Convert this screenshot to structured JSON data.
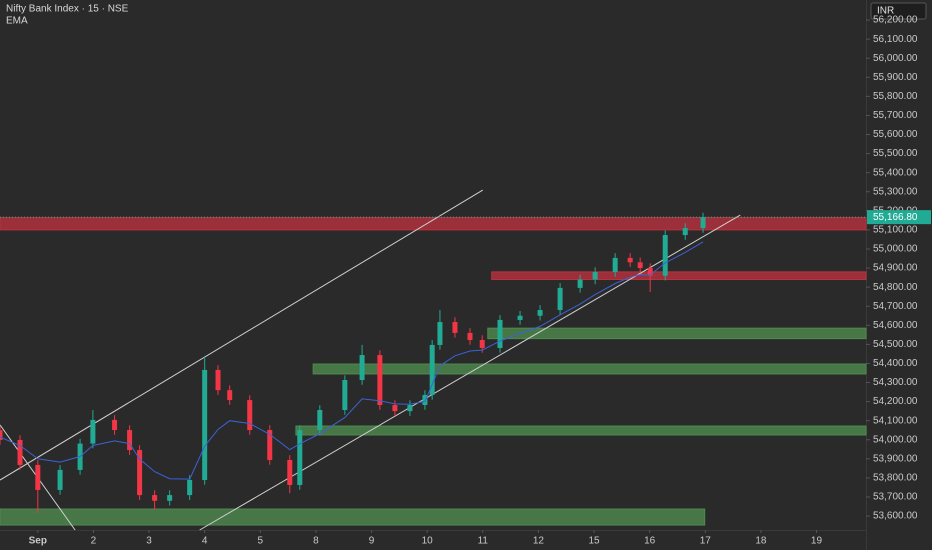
{
  "chart_data": {
    "type": "candlestick",
    "title": "Nifty Bank Index · 15 · NSE",
    "currency": "INR",
    "up_color": "#22ab94",
    "down_color": "#f23645",
    "grid": false,
    "x": [
      -0.68,
      -0.32,
      0,
      0.4,
      0.76,
      0.99,
      1.38,
      1.65,
      1.83,
      2.1,
      2.37,
      2.73,
      3,
      3.24,
      3.45,
      3.81,
      4.17,
      4.53,
      4.71,
      5.07,
      5.52,
      5.83,
      6.15,
      6.42,
      6.69,
      6.96,
      7.09,
      7.23,
      7.5,
      7.77,
      7.99,
      8.31,
      8.67,
      9.03,
      9.39,
      9.75,
      10.02,
      10.38,
      10.65,
      10.83,
      11.01,
      11.28,
      11.64,
      11.96
    ],
    "open": [
      54050,
      53999,
      53868,
      53737,
      53842,
      53980,
      54104,
      54051,
      53946,
      53710,
      53680,
      53710,
      53789,
      54366,
      54260,
      54208,
      54051,
      53894,
      53763,
      54051,
      54156,
      54313,
      54444,
      54182,
      54150,
      54182,
      54235,
      54497,
      54617,
      54560,
      54523,
      54481,
      54628,
      54650,
      54680,
      54796,
      54840,
      54879,
      54953,
      54930,
      54900,
      54860,
      55073,
      55110
    ],
    "high": [
      54075,
      54024,
      53893,
      53867,
      54005,
      54156,
      54129,
      54076,
      53971,
      53735,
      53735,
      53814,
      54434,
      54391,
      54285,
      54233,
      54076,
      53919,
      54076,
      54181,
      54338,
      54497,
      54469,
      54207,
      54207,
      54260,
      54522,
      54680,
      54642,
      54585,
      54548,
      54653,
      54675,
      54705,
      54821,
      54865,
      54904,
      54978,
      54978,
      54955,
      54925,
      55098,
      55135,
      55190
    ],
    "low": [
      53974,
      53843,
      53616,
      53712,
      53817,
      53955,
      54026,
      53921,
      53685,
      53632,
      53655,
      53685,
      53764,
      54235,
      54183,
      54026,
      53869,
      53720,
      53738,
      54026,
      54131,
      54288,
      54157,
      54125,
      54125,
      54157,
      54210,
      54472,
      54535,
      54498,
      54456,
      54456,
      54603,
      54625,
      54655,
      54771,
      54815,
      54854,
      54905,
      54875,
      54774,
      54835,
      55048,
      55085
    ],
    "close": [
      53999,
      53868,
      53737,
      53842,
      53980,
      54104,
      54051,
      53946,
      53710,
      53680,
      53710,
      53789,
      54366,
      54260,
      54208,
      54051,
      53894,
      53763,
      54051,
      54156,
      54313,
      54444,
      54182,
      54150,
      54182,
      54235,
      54497,
      54617,
      54560,
      54523,
      54481,
      54628,
      54650,
      54680,
      54796,
      54840,
      54879,
      54953,
      54930,
      54900,
      54860,
      55073,
      55110,
      55166.8
    ],
    "series": [
      {
        "name": "EMA",
        "color": "#3b63d6",
        "values": [
          54014,
          53970,
          53900,
          53883,
          53912,
          53970,
          53994,
          53980,
          53899,
          53833,
          53796,
          53794,
          53966,
          54054,
          54100,
          54085,
          54028,
          53948,
          53979,
          54032,
          54116,
          54214,
          54204,
          54188,
          54186,
          54201,
          54290,
          54388,
          54440,
          54465,
          54470,
          54517,
          54557,
          54594,
          54655,
          54711,
          54761,
          54819,
          54852,
          54866,
          54864,
          54927,
          54982,
          55037
        ]
      }
    ],
    "last_price": {
      "value": 55166.8,
      "label": "55,166.80",
      "color": "#22ab94"
    },
    "zones": [
      {
        "color": "#b8323f",
        "low": 55100,
        "high": 55165,
        "start": -0.68,
        "end": 14.89
      },
      {
        "color": "#b8323f",
        "low": 54840,
        "high": 54880,
        "start": 8.16,
        "end": 14.89
      },
      {
        "color": "#4f8a4f",
        "low": 54530,
        "high": 54585,
        "start": 8.09,
        "end": 14.89
      },
      {
        "color": "#4f8a4f",
        "low": 54345,
        "high": 54397,
        "start": 4.95,
        "end": 14.89
      },
      {
        "color": "#4f8a4f",
        "low": 54025,
        "high": 54072,
        "start": 4.64,
        "end": 14.89
      },
      {
        "color": "#4f8a4f",
        "low": 53553,
        "high": 53637,
        "start": -0.68,
        "end": 11.99
      }
    ],
    "trend_lines": [
      {
        "x": [
          -0.68,
          8
        ],
        "y": [
          53789,
          55309
        ]
      },
      {
        "x": [
          2.91,
          12.63
        ],
        "y": [
          53527,
          55178
        ]
      },
      {
        "x": [
          -0.68,
          0.67
        ],
        "y": [
          54078,
          53527
        ]
      }
    ],
    "xlim": [
      -0.68,
      14.89
    ],
    "xticks": [
      {
        "value": 0,
        "label": "Sep"
      },
      {
        "value": 1,
        "label": "2"
      },
      {
        "value": 2,
        "label": "3"
      },
      {
        "value": 3,
        "label": "4"
      },
      {
        "value": 4,
        "label": "5"
      },
      {
        "value": 5,
        "label": "8"
      },
      {
        "value": 6,
        "label": "9"
      },
      {
        "value": 7,
        "label": "10"
      },
      {
        "value": 8,
        "label": "11"
      },
      {
        "value": 9,
        "label": "12"
      },
      {
        "value": 10,
        "label": "15"
      },
      {
        "value": 11,
        "label": "16"
      },
      {
        "value": 12,
        "label": "17"
      },
      {
        "value": 13,
        "label": "18"
      },
      {
        "value": 14,
        "label": "19"
      }
    ],
    "ylim": [
      53527,
      56305
    ],
    "yticks": [
      {
        "value": 53600,
        "label": "53,600.00"
      },
      {
        "value": 53700,
        "label": "53,700.00"
      },
      {
        "value": 53800,
        "label": "53,800.00"
      },
      {
        "value": 53900,
        "label": "53,900.00"
      },
      {
        "value": 54000,
        "label": "54,000.00"
      },
      {
        "value": 54100,
        "label": "54,100.00"
      },
      {
        "value": 54200,
        "label": "54,200.00"
      },
      {
        "value": 54300,
        "label": "54,300.00"
      },
      {
        "value": 54400,
        "label": "54,400.00"
      },
      {
        "value": 54500,
        "label": "54,500.00"
      },
      {
        "value": 54600,
        "label": "54,600.00"
      },
      {
        "value": 54700,
        "label": "54,700.00"
      },
      {
        "value": 54800,
        "label": "54,800.00"
      },
      {
        "value": 54900,
        "label": "54,900.00"
      },
      {
        "value": 55000,
        "label": "55,000.00"
      },
      {
        "value": 55100,
        "label": "55,100.00"
      },
      {
        "value": 55200,
        "label": "55,200.00"
      },
      {
        "value": 55300,
        "label": "55,300.00"
      },
      {
        "value": 55400,
        "label": "55,400.00"
      },
      {
        "value": 55500,
        "label": "55,500.00"
      },
      {
        "value": 55600,
        "label": "55,600.00"
      },
      {
        "value": 55700,
        "label": "55,700.00"
      },
      {
        "value": 55800,
        "label": "55,800.00"
      },
      {
        "value": 55900,
        "label": "55,900.00"
      },
      {
        "value": 56000,
        "label": "56,000.00"
      },
      {
        "value": 56100,
        "label": "56,100.00"
      },
      {
        "value": 56200,
        "label": "56,200.00"
      }
    ]
  }
}
